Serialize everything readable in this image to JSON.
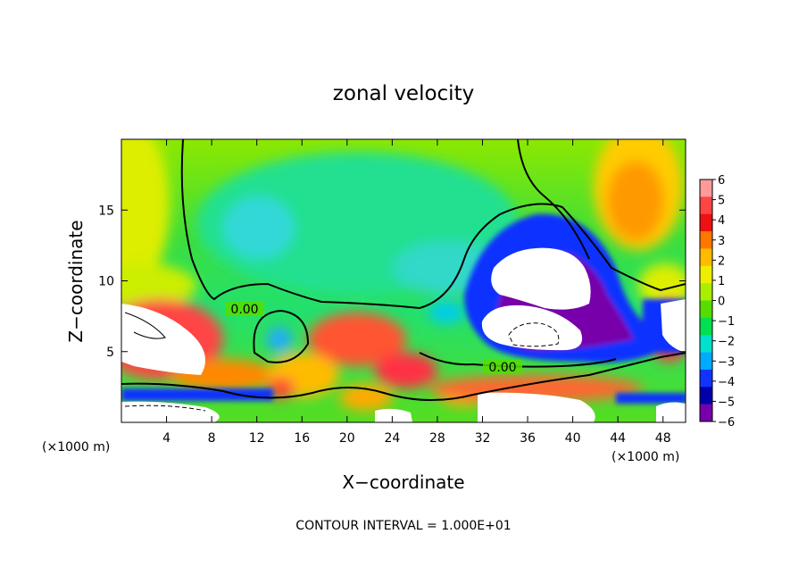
{
  "chart_data": {
    "type": "heatmap",
    "title": "zonal velocity",
    "xlabel": "X−coordinate",
    "ylabel": "Z−coordinate",
    "x_unit_left": "(×1000 m)",
    "x_unit_right": "(×1000 m)",
    "footer": "CONTOUR INTERVAL = 1.000E+01",
    "xlim": [
      0,
      50
    ],
    "ylim": [
      0,
      20
    ],
    "x_ticks": [
      4,
      8,
      12,
      16,
      20,
      24,
      28,
      32,
      36,
      40,
      44,
      48
    ],
    "x_tick_labels": [
      "4",
      "8",
      "12",
      "16",
      "20",
      "24",
      "28",
      "32",
      "36",
      "40",
      "44",
      "48"
    ],
    "y_ticks": [
      5,
      10,
      15
    ],
    "y_tick_labels": [
      "5",
      "10",
      "15"
    ],
    "colorbar": {
      "min": -6,
      "max": 6,
      "labels": [
        "6",
        "5",
        "4",
        "3",
        "2",
        "1",
        "0",
        "−1",
        "−2",
        "−3",
        "−4",
        "−5",
        "−6"
      ],
      "colors": [
        "#ff9a9a",
        "#ff4444",
        "#ee1111",
        "#ff7700",
        "#ffbb00",
        "#eeee00",
        "#aaee00",
        "#55dd00",
        "#00e050",
        "#00e0cc",
        "#00aaff",
        "#1133ff",
        "#0000aa",
        "#7700aa"
      ]
    },
    "contour_labels": [
      {
        "text": "0.00",
        "x": 11.0,
        "z": 7.9
      },
      {
        "text": "0.00",
        "x": 34.0,
        "z": 3.9
      }
    ],
    "field_description": "zonal velocity contoured at interval 10; white where |u|>6"
  }
}
